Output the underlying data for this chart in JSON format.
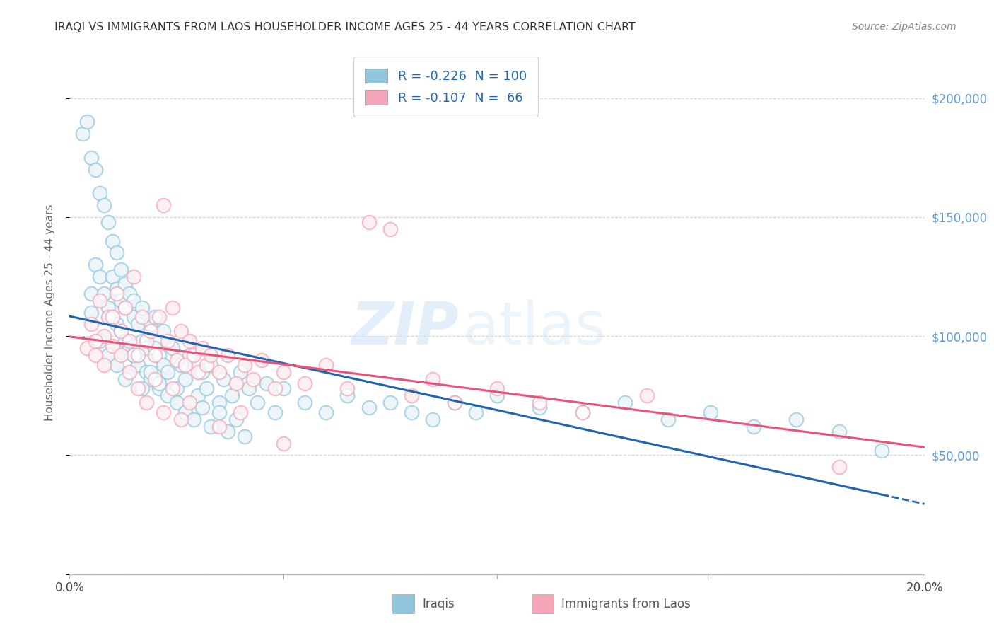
{
  "title": "IRAQI VS IMMIGRANTS FROM LAOS HOUSEHOLDER INCOME AGES 25 - 44 YEARS CORRELATION CHART",
  "source": "Source: ZipAtlas.com",
  "ylabel": "Householder Income Ages 25 - 44 years",
  "xlim": [
    0.0,
    0.2
  ],
  "ylim": [
    0,
    220000
  ],
  "yticks": [
    0,
    50000,
    100000,
    150000,
    200000
  ],
  "ytick_labels": [
    "",
    "$50,000",
    "$100,000",
    "$150,000",
    "$200,000"
  ],
  "iraqi_R": -0.226,
  "iraqi_N": 100,
  "laos_R": -0.107,
  "laos_N": 66,
  "iraqi_color": "#92c5de",
  "laos_color": "#f4a5b8",
  "iraqi_line_color": "#2166ac",
  "laos_line_color": "#e8537a",
  "background_color": "#ffffff",
  "grid_color": "#cccccc",
  "watermark_zip": "ZIP",
  "watermark_atlas": "atlas",
  "legend_label_iraqi": "Iraqis",
  "legend_label_laos": "Immigrants from Laos",
  "title_color": "#333333",
  "axis_label_color": "#666666",
  "right_ytick_color": "#5b9bd5",
  "iraqi_x": [
    0.003,
    0.004,
    0.005,
    0.005,
    0.006,
    0.006,
    0.007,
    0.007,
    0.008,
    0.008,
    0.009,
    0.009,
    0.01,
    0.01,
    0.01,
    0.011,
    0.011,
    0.011,
    0.012,
    0.012,
    0.012,
    0.013,
    0.013,
    0.013,
    0.014,
    0.014,
    0.015,
    0.015,
    0.015,
    0.016,
    0.016,
    0.017,
    0.017,
    0.018,
    0.018,
    0.019,
    0.019,
    0.02,
    0.02,
    0.021,
    0.021,
    0.022,
    0.022,
    0.023,
    0.024,
    0.025,
    0.026,
    0.027,
    0.028,
    0.03,
    0.031,
    0.032,
    0.033,
    0.035,
    0.036,
    0.038,
    0.04,
    0.042,
    0.044,
    0.046,
    0.048,
    0.05,
    0.055,
    0.06,
    0.065,
    0.07,
    0.075,
    0.08,
    0.085,
    0.09,
    0.095,
    0.1,
    0.11,
    0.12,
    0.13,
    0.14,
    0.15,
    0.16,
    0.17,
    0.18,
    0.005,
    0.007,
    0.009,
    0.011,
    0.013,
    0.015,
    0.017,
    0.019,
    0.021,
    0.023,
    0.025,
    0.027,
    0.029,
    0.031,
    0.033,
    0.035,
    0.037,
    0.039,
    0.041,
    0.19
  ],
  "iraqi_y": [
    185000,
    190000,
    175000,
    118000,
    170000,
    130000,
    160000,
    125000,
    155000,
    118000,
    148000,
    112000,
    140000,
    108000,
    125000,
    135000,
    105000,
    120000,
    128000,
    102000,
    115000,
    122000,
    98000,
    112000,
    118000,
    95000,
    108000,
    92000,
    115000,
    105000,
    88000,
    98000,
    112000,
    95000,
    85000,
    105000,
    82000,
    95000,
    108000,
    92000,
    78000,
    88000,
    102000,
    85000,
    95000,
    78000,
    88000,
    82000,
    92000,
    75000,
    85000,
    78000,
    88000,
    72000,
    82000,
    75000,
    85000,
    78000,
    72000,
    80000,
    68000,
    78000,
    72000,
    68000,
    75000,
    70000,
    72000,
    68000,
    65000,
    72000,
    68000,
    75000,
    70000,
    68000,
    72000,
    65000,
    68000,
    62000,
    65000,
    60000,
    110000,
    98000,
    92000,
    88000,
    82000,
    92000,
    78000,
    85000,
    80000,
    75000,
    72000,
    68000,
    65000,
    70000,
    62000,
    68000,
    60000,
    65000,
    58000,
    52000
  ],
  "laos_x": [
    0.004,
    0.005,
    0.006,
    0.007,
    0.008,
    0.009,
    0.01,
    0.011,
    0.012,
    0.013,
    0.014,
    0.015,
    0.016,
    0.017,
    0.018,
    0.019,
    0.02,
    0.021,
    0.022,
    0.023,
    0.024,
    0.025,
    0.026,
    0.027,
    0.028,
    0.029,
    0.03,
    0.031,
    0.032,
    0.033,
    0.035,
    0.037,
    0.039,
    0.041,
    0.043,
    0.045,
    0.048,
    0.05,
    0.055,
    0.06,
    0.065,
    0.07,
    0.075,
    0.08,
    0.085,
    0.09,
    0.1,
    0.11,
    0.12,
    0.135,
    0.006,
    0.008,
    0.01,
    0.012,
    0.014,
    0.016,
    0.018,
    0.02,
    0.022,
    0.024,
    0.026,
    0.028,
    0.035,
    0.04,
    0.05,
    0.18
  ],
  "laos_y": [
    95000,
    105000,
    92000,
    115000,
    100000,
    108000,
    96000,
    118000,
    102000,
    112000,
    98000,
    125000,
    92000,
    108000,
    98000,
    102000,
    92000,
    108000,
    155000,
    98000,
    112000,
    90000,
    102000,
    88000,
    98000,
    92000,
    85000,
    95000,
    88000,
    92000,
    85000,
    92000,
    80000,
    88000,
    82000,
    90000,
    78000,
    85000,
    80000,
    88000,
    78000,
    148000,
    145000,
    75000,
    82000,
    72000,
    78000,
    72000,
    68000,
    75000,
    98000,
    88000,
    108000,
    92000,
    85000,
    78000,
    72000,
    82000,
    68000,
    78000,
    65000,
    72000,
    62000,
    68000,
    55000,
    45000
  ]
}
